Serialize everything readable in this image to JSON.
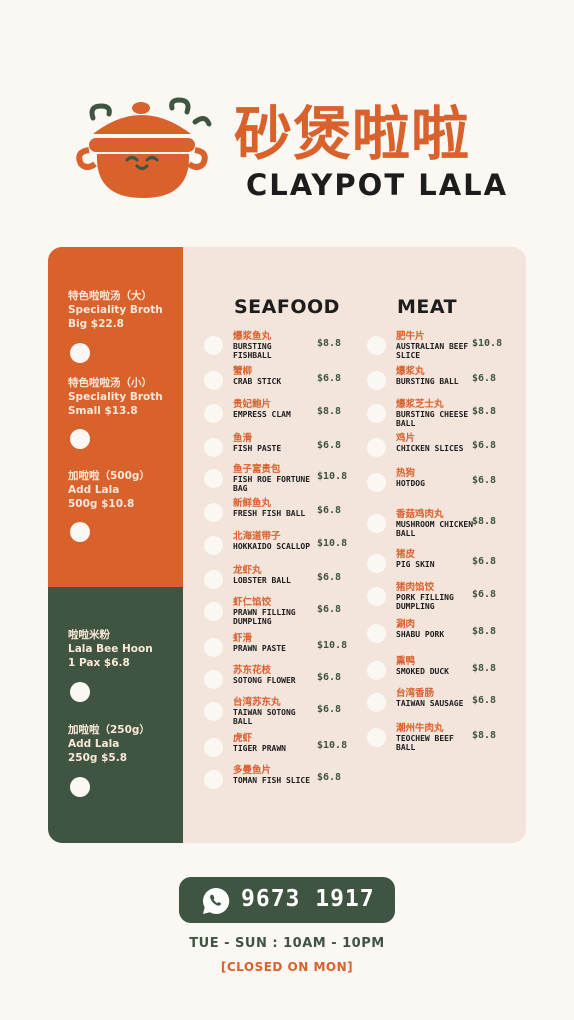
{
  "brand": {
    "name_cn": "砂煲啦啦",
    "name_en": "CLAYPOT LALA",
    "logo_icon": "claypot-mascot-icon"
  },
  "colors": {
    "orange": "#d9612c",
    "green": "#3f5441",
    "panel": "#f3e4dc",
    "background": "#fbf7f3"
  },
  "sidebar": {
    "items": [
      {
        "cn": "特色啦啦汤（大）",
        "en": "Speciality Broth",
        "price": "Big $22.8"
      },
      {
        "cn": "特色啦啦汤（小）",
        "en": "Speciality Broth",
        "price": "Small $13.8"
      },
      {
        "cn": "加啦啦（500g）",
        "en": "Add Lala",
        "price": "500g $10.8"
      },
      {
        "cn": "啦啦米粉",
        "en": "Lala Bee Hoon",
        "price": "1 Pax $6.8"
      },
      {
        "cn": "加啦啦（250g）",
        "en": "Add Lala",
        "price": "250g $5.8"
      }
    ]
  },
  "seafood": {
    "title": "SEAFOOD",
    "items": [
      {
        "cn": "爆浆鱼丸",
        "en": "BURSTING FISHBALL",
        "price": "$8.8"
      },
      {
        "cn": "蟹柳",
        "en": "CRAB STICK",
        "price": "$6.8"
      },
      {
        "cn": "贵妃鲍片",
        "en": "EMPRESS CLAM",
        "price": "$8.8"
      },
      {
        "cn": "鱼滑",
        "en": "FISH PASTE",
        "price": "$6.8"
      },
      {
        "cn": "鱼子富贵包",
        "en": "FISH ROE FORTUNE BAG",
        "price": "$10.8"
      },
      {
        "cn": "新鲜鱼丸",
        "en": "FRESH FISH BALL",
        "price": "$6.8"
      },
      {
        "cn": "北海道带子",
        "en": "HOKKAIDO SCALLOP",
        "price": "$10.8"
      },
      {
        "cn": "龙虾丸",
        "en": "LOBSTER BALL",
        "price": "$6.8"
      },
      {
        "cn": "虾仁馅饺",
        "en": "PRAWN FILLING DUMPLING",
        "price": "$6.8"
      },
      {
        "cn": "虾滑",
        "en": "PRAWN PASTE",
        "price": "$10.8"
      },
      {
        "cn": "苏东花枝",
        "en": "SOTONG FLOWER",
        "price": "$6.8"
      },
      {
        "cn": "台湾苏东丸",
        "en": "TAIWAN SOTONG BALL",
        "price": "$6.8"
      },
      {
        "cn": "虎虾",
        "en": "TIGER PRAWN",
        "price": "$10.8"
      },
      {
        "cn": "多曼鱼片",
        "en": "TOMAN FISH SLICE",
        "price": "$6.8"
      }
    ]
  },
  "meat": {
    "title": "MEAT",
    "items": [
      {
        "cn": "肥牛片",
        "en": "AUSTRALIAN BEEF SLICE",
        "price": "$10.8"
      },
      {
        "cn": "爆浆丸",
        "en": "BURSTING BALL",
        "price": "$6.8"
      },
      {
        "cn": "爆浆芝士丸",
        "en": "BURSTING CHEESE BALL",
        "price": "$8.8"
      },
      {
        "cn": "鸡片",
        "en": "CHICKEN SLICES",
        "price": "$6.8"
      },
      {
        "cn": "热狗",
        "en": "HOTDOG",
        "price": "$6.8"
      },
      {
        "cn": "香菇鸡肉丸",
        "en": "MUSHROOM CHICKEN BALL",
        "price": "$8.8"
      },
      {
        "cn": "猪皮",
        "en": "PIG SKIN",
        "price": "$6.8"
      },
      {
        "cn": "猪肉馅饺",
        "en": "PORK FILLING DUMPLING",
        "price": "$6.8"
      },
      {
        "cn": "涮肉",
        "en": "SHABU PORK",
        "price": "$8.8"
      },
      {
        "cn": "熏鸭",
        "en": "SMOKED DUCK",
        "price": "$8.8"
      },
      {
        "cn": "台湾香肠",
        "en": "TAIWAN SAUSAGE",
        "price": "$6.8"
      },
      {
        "cn": "潮州牛肉丸",
        "en": "TEOCHEW BEEF BALL",
        "price": "$8.8"
      }
    ]
  },
  "contact": {
    "icon": "whatsapp-icon",
    "phone": "9673 1917",
    "hours": "TUE - SUN :  10AM - 10PM",
    "closed": "[CLOSED ON MON]"
  }
}
